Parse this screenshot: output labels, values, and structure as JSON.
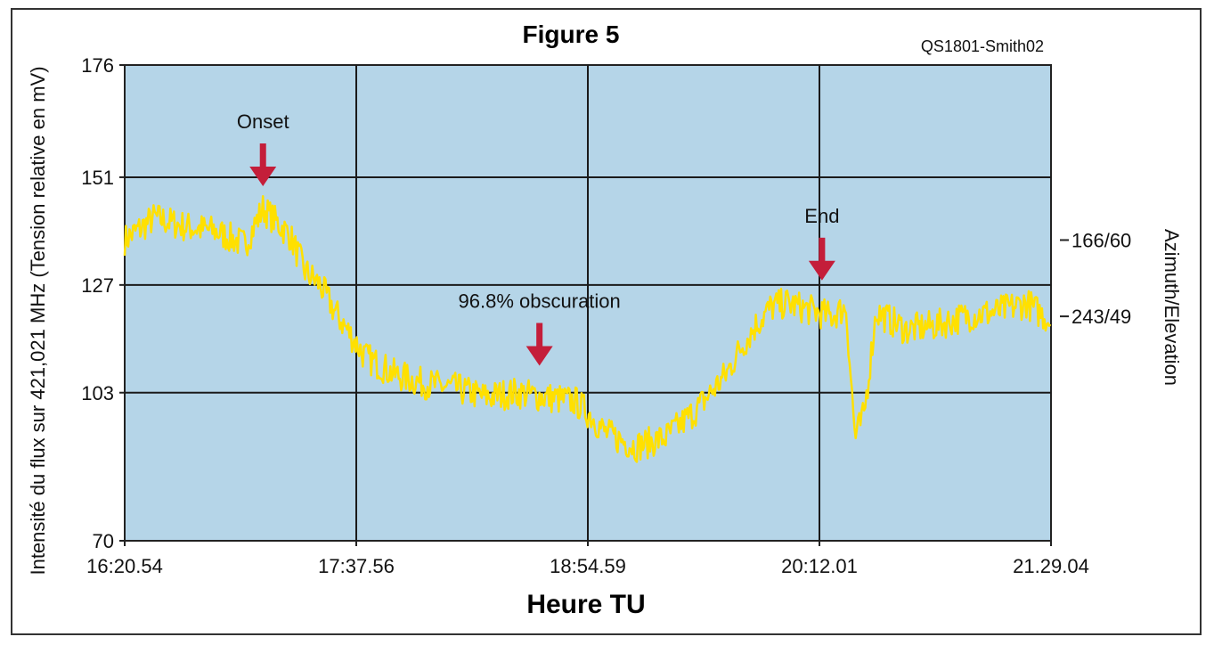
{
  "chart_data": {
    "type": "line",
    "title": "Figure 5",
    "code": "QS1801-Smith02",
    "xlabel": "Heure TU",
    "ylabel": "Intensité du flux sur 421,021 MHz (Tension relative en mV)",
    "y2label": "Azimuth/Elevation",
    "x_ticks": [
      "16:20.54",
      "17:37.56",
      "18:54.59",
      "20:12.01",
      "21.29.04"
    ],
    "x_range_minutes": [
      0,
      308.2
    ],
    "y_ticks": [
      70,
      103,
      127,
      151,
      176
    ],
    "ylim": [
      70,
      176
    ],
    "y2_ticks": [
      {
        "label": "166/60",
        "y": 137
      },
      {
        "label": "243/49",
        "y": 120
      }
    ],
    "grid": true,
    "line_color": "#ffe000",
    "background_color": "#b5d5e8",
    "arrow_color": "#c41e3a",
    "annotations": [
      {
        "label": "Onset",
        "x": 46,
        "y": 149
      },
      {
        "label": "96.8% obscuration",
        "x": 138,
        "y": 109
      },
      {
        "label": "End",
        "x": 232,
        "y": 128
      }
    ],
    "series": [
      {
        "x": [
          0,
          10,
          20,
          30,
          40,
          46,
          55,
          60,
          65,
          70,
          75,
          80,
          90,
          100,
          110,
          120,
          130,
          140,
          150,
          155,
          160,
          170,
          180,
          185,
          190,
          200,
          205,
          210,
          215,
          220,
          225,
          230,
          235,
          240,
          243,
          246,
          250,
          255,
          260,
          270,
          280,
          290,
          300,
          308
        ],
        "y": [
          137,
          142,
          140,
          139,
          136,
          144,
          138,
          130,
          127,
          121,
          116,
          111,
          107,
          105,
          104,
          102,
          103,
          102,
          101,
          98,
          94,
          91,
          93,
          96,
          99,
          107,
          113,
          118,
          122,
          123,
          122,
          121,
          120,
          122,
          93,
          98,
          121,
          119,
          117,
          118,
          120,
          121,
          123,
          119
        ]
      }
    ]
  }
}
